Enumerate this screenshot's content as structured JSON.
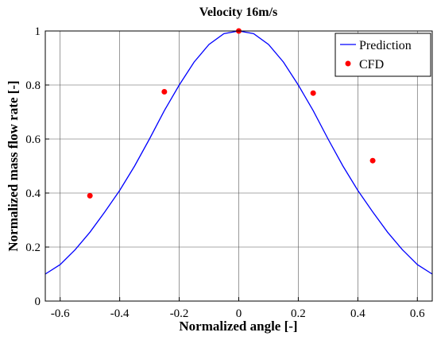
{
  "chart_data": {
    "type": "line",
    "title": "Velocity 16m/s",
    "xlabel": "Normalized angle [-]",
    "ylabel": "Normalized mass flow rate [-]",
    "xlim": [
      -0.65,
      0.65
    ],
    "ylim": [
      0,
      1
    ],
    "grid": true,
    "legend_position": "top-right",
    "x_ticks": [
      -0.6,
      -0.4,
      -0.2,
      0,
      0.2,
      0.4,
      0.6
    ],
    "x_tick_labels": [
      "-0.6",
      "-0.4",
      "-0.2",
      "0",
      "0.2",
      "0.4",
      "0.6"
    ],
    "y_ticks": [
      0,
      0.2,
      0.4,
      0.6,
      0.8,
      1
    ],
    "y_tick_labels": [
      "0",
      "0.2",
      "0.4",
      "0.6",
      "0.8",
      "1"
    ],
    "series": [
      {
        "name": "Prediction",
        "kind": "line",
        "color": "#0000ff",
        "x": [
          -0.65,
          -0.6,
          -0.55,
          -0.5,
          -0.45,
          -0.4,
          -0.35,
          -0.3,
          -0.25,
          -0.2,
          -0.15,
          -0.1,
          -0.05,
          0,
          0.05,
          0.1,
          0.15,
          0.2,
          0.25,
          0.3,
          0.35,
          0.4,
          0.45,
          0.5,
          0.55,
          0.6,
          0.65
        ],
        "y": [
          0.1,
          0.135,
          0.19,
          0.255,
          0.33,
          0.41,
          0.5,
          0.6,
          0.705,
          0.8,
          0.885,
          0.95,
          0.99,
          1.0,
          0.99,
          0.95,
          0.885,
          0.8,
          0.705,
          0.6,
          0.5,
          0.41,
          0.33,
          0.255,
          0.19,
          0.135,
          0.1
        ]
      },
      {
        "name": "CFD",
        "kind": "scatter",
        "color": "#ff0000",
        "x": [
          -0.5,
          -0.25,
          0,
          0.25,
          0.45
        ],
        "y": [
          0.39,
          0.775,
          1.0,
          0.77,
          0.52
        ]
      }
    ]
  }
}
